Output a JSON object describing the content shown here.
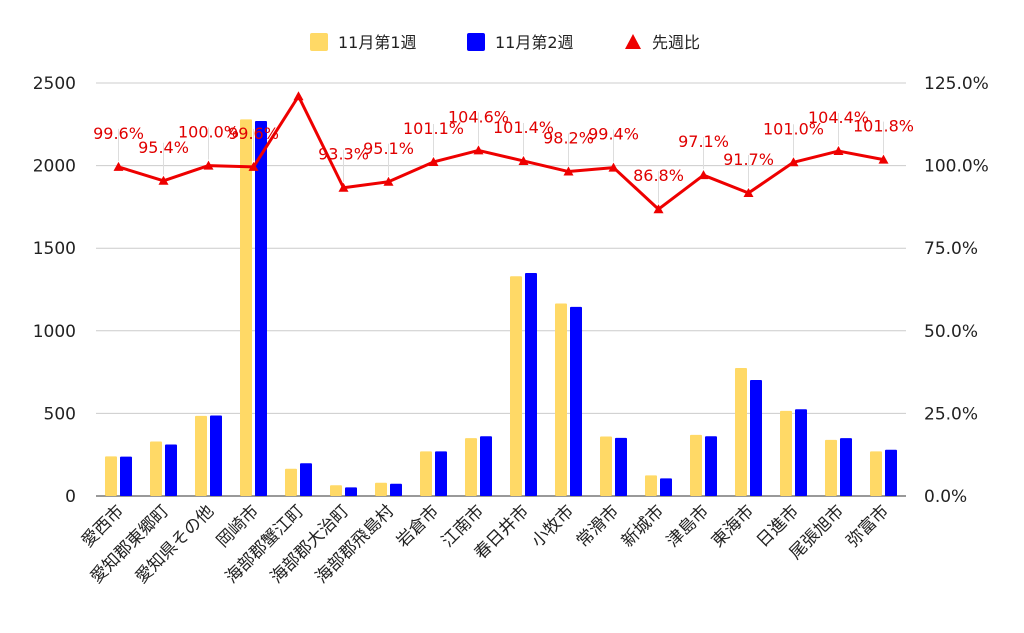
{
  "chart_data": {
    "type": "bar",
    "categories": [
      "愛西市",
      "愛知郡東郷町",
      "愛知県その他",
      "岡崎市",
      "海部郡蟹江町",
      "海部郡大治町",
      "海部郡飛島村",
      "岩倉市",
      "江南市",
      "春日井市",
      "小牧市",
      "常滑市",
      "新城市",
      "津島市",
      "東海市",
      "日進市",
      "尾張旭市",
      "弥富市"
    ],
    "series": [
      {
        "name": "11月第1週",
        "axis": "left",
        "kind": "bar",
        "color": "#ffd966",
        "values": [
          240,
          330,
          485,
          2280,
          165,
          65,
          80,
          270,
          350,
          1330,
          1165,
          360,
          125,
          370,
          775,
          515,
          340,
          270
        ]
      },
      {
        "name": "11月第2週",
        "axis": "left",
        "kind": "bar",
        "color": "#0000ff",
        "values": [
          238,
          312,
          487,
          2270,
          198,
          52,
          74,
          270,
          362,
          1350,
          1145,
          352,
          107,
          362,
          702,
          525,
          350,
          280
        ]
      },
      {
        "name": "先週比",
        "axis": "right",
        "kind": "line",
        "color": "#ee0000",
        "values": [
          99.6,
          95.4,
          100.0,
          99.6,
          121.0,
          93.3,
          95.1,
          101.1,
          104.6,
          101.4,
          98.2,
          99.4,
          86.8,
          97.1,
          91.7,
          101.0,
          104.4,
          101.8
        ]
      }
    ],
    "data_labels": [
      "99.6%",
      "95.4%",
      "100.0%",
      "99.6%",
      "",
      "93.3%",
      "95.1%",
      "101.1%",
      "104.6%",
      "101.4%",
      "98.2%",
      "99.4%",
      "86.8%",
      "97.1%",
      "91.7%",
      "101.0%",
      "104.4%",
      "101.8%"
    ],
    "y_left": {
      "min": 0,
      "max": 2500,
      "ticks": [
        "0",
        "500",
        "1000",
        "1500",
        "2000",
        "2500"
      ]
    },
    "y_right": {
      "min": 0,
      "max": 125,
      "ticks": [
        "0.0%",
        "25.0%",
        "50.0%",
        "75.0%",
        "100.0%",
        "125.0%"
      ]
    },
    "legend_position": "top",
    "grid": true
  }
}
